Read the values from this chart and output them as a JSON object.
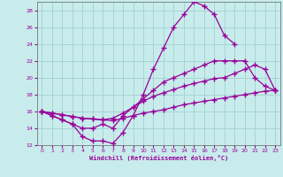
{
  "xlabel": "Windchill (Refroidissement éolien,°C)",
  "background_color": "#c8ecec",
  "grid_color": "#a8d4d4",
  "line_color": "#990099",
  "xlim": [
    0,
    23
  ],
  "ylim": [
    12,
    29
  ],
  "yticks": [
    12,
    14,
    16,
    18,
    20,
    22,
    24,
    26,
    28
  ],
  "xticks": [
    0,
    1,
    2,
    3,
    4,
    5,
    6,
    7,
    8,
    9,
    10,
    11,
    12,
    13,
    14,
    15,
    16,
    17,
    18,
    19,
    20,
    21,
    22,
    23
  ],
  "series": [
    {
      "x": [
        0,
        1,
        2,
        3,
        4,
        5,
        6,
        7,
        8,
        9,
        10,
        11,
        12,
        13,
        14,
        15,
        16,
        17,
        18,
        19,
        20,
        21,
        22,
        23
      ],
      "y": [
        16.0,
        15.8,
        15.6,
        15.4,
        15.2,
        15.1,
        15.0,
        14.9,
        15.2,
        15.5,
        15.8,
        16.0,
        16.2,
        16.5,
        16.8,
        17.0,
        17.2,
        17.4,
        17.6,
        17.8,
        18.0,
        18.2,
        18.4,
        18.5
      ]
    },
    {
      "x": [
        0,
        1,
        2,
        3,
        4,
        5,
        6,
        7,
        8,
        9,
        10,
        11,
        12,
        13,
        14,
        15,
        16,
        17,
        18,
        19,
        20,
        21,
        22,
        23
      ],
      "y": [
        16.0,
        15.8,
        15.6,
        15.4,
        15.2,
        15.1,
        15.0,
        15.2,
        15.8,
        16.5,
        17.2,
        17.8,
        18.2,
        18.6,
        19.0,
        19.3,
        19.6,
        19.9,
        20.0,
        20.5,
        21.0,
        21.5,
        21.0,
        18.5
      ]
    },
    {
      "x": [
        0,
        1,
        2,
        3,
        4,
        5,
        6,
        7,
        8,
        9,
        10,
        11,
        12,
        13,
        14,
        15,
        16,
        17,
        18,
        19,
        20,
        21,
        22,
        23
      ],
      "y": [
        16.0,
        15.5,
        15.0,
        14.5,
        14.0,
        14.0,
        14.5,
        14.0,
        15.5,
        16.5,
        17.5,
        18.5,
        19.5,
        20.0,
        20.5,
        21.0,
        21.5,
        22.0,
        22.0,
        22.0,
        22.0,
        20.0,
        19.0,
        18.5
      ]
    },
    {
      "x": [
        0,
        1,
        2,
        3,
        4,
        5,
        6,
        7,
        8,
        9,
        10,
        11,
        12,
        13,
        14,
        15,
        16,
        17,
        18,
        19,
        20,
        21,
        22,
        23
      ],
      "y": [
        16.0,
        15.5,
        15.0,
        14.5,
        13.0,
        12.5,
        12.5,
        12.2,
        13.5,
        15.5,
        18.0,
        21.0,
        23.5,
        26.0,
        27.5,
        29.0,
        28.5,
        27.5,
        25.0,
        24.0,
        null,
        null,
        null,
        null
      ]
    }
  ]
}
